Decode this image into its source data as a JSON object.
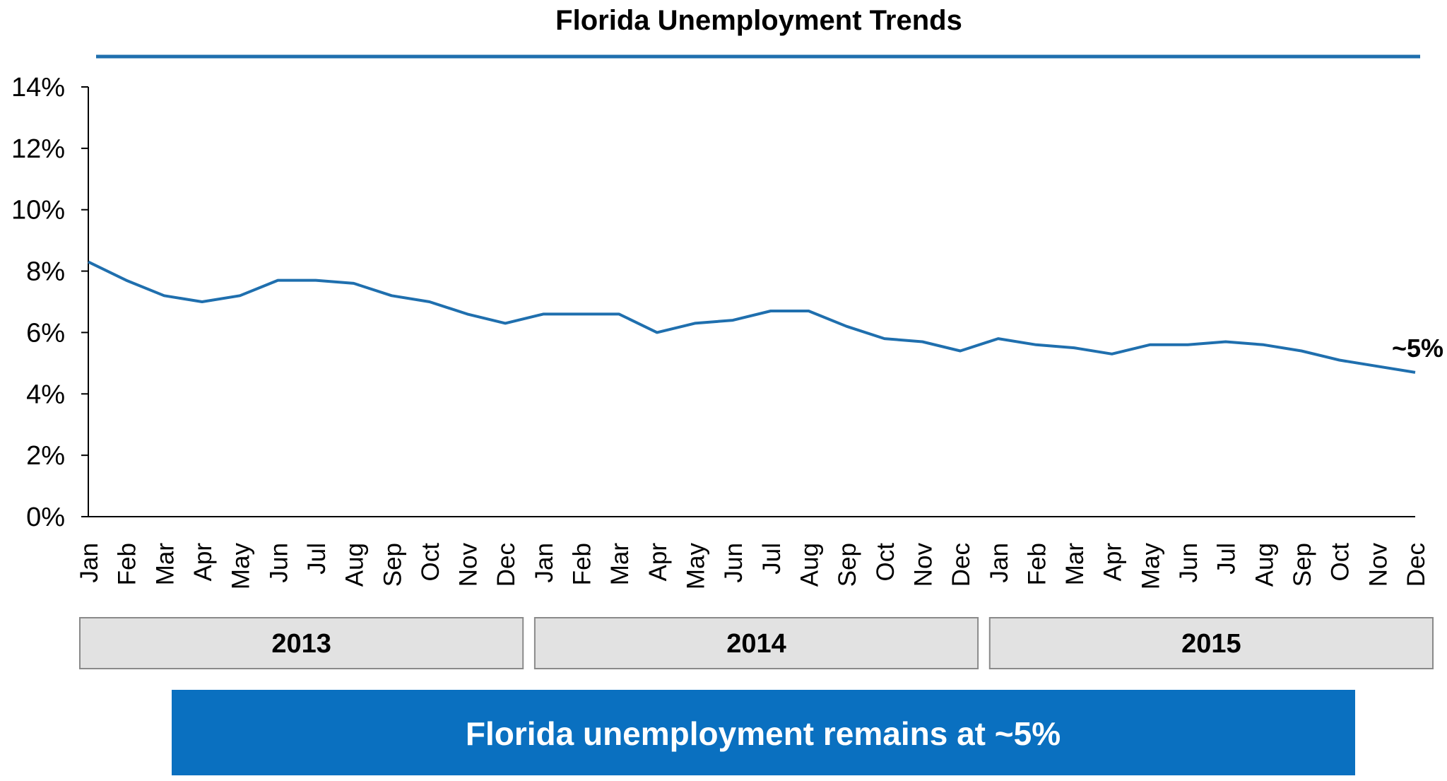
{
  "chart_data": {
    "type": "line",
    "title": "Florida Unemployment Trends",
    "xlabel": "",
    "ylabel": "",
    "ylim": [
      0,
      14
    ],
    "yticks": [
      "0%",
      "2%",
      "4%",
      "6%",
      "8%",
      "10%",
      "12%",
      "14%"
    ],
    "grid": false,
    "categories": [
      "Jan",
      "Feb",
      "Mar",
      "Apr",
      "May",
      "Jun",
      "Jul",
      "Aug",
      "Sep",
      "Oct",
      "Nov",
      "Dec",
      "Jan",
      "Feb",
      "Mar",
      "Apr",
      "May",
      "Jun",
      "Jul",
      "Aug",
      "Sep",
      "Oct",
      "Nov",
      "Dec",
      "Jan",
      "Feb",
      "Mar",
      "Apr",
      "May",
      "Jun",
      "Jul",
      "Aug",
      "Sep",
      "Oct",
      "Nov",
      "Dec"
    ],
    "years": [
      "2013",
      "2014",
      "2015"
    ],
    "series": [
      {
        "name": "",
        "color": "#1f6fae",
        "values": [
          8.3,
          7.7,
          7.2,
          7.0,
          7.2,
          7.7,
          7.7,
          7.6,
          7.2,
          7.0,
          6.6,
          6.3,
          6.6,
          6.6,
          6.6,
          6.0,
          6.3,
          6.4,
          6.7,
          6.7,
          6.2,
          5.8,
          5.7,
          5.4,
          5.8,
          5.6,
          5.5,
          5.3,
          5.6,
          5.6,
          5.7,
          5.6,
          5.4,
          5.1,
          4.9,
          4.7
        ]
      }
    ],
    "end_label": "~5%",
    "takeaway": "Florida unemployment remains at ~5%"
  },
  "colors": {
    "accent": "#1f6fae",
    "banner": "#0a70c0",
    "year_box": "#e2e2e2"
  }
}
